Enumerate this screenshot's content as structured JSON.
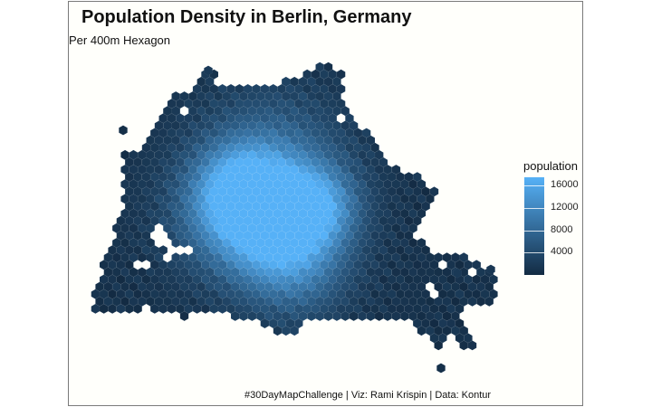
{
  "title": "Population Density in Berlin, Germany",
  "subtitle": "Per 400m Hexagon",
  "caption": "#30DayMapChallenge | Viz:  Rami Krispin | Data:  Kontur",
  "map": {
    "type": "hexbin choropleth",
    "region": "Berlin",
    "color_low": "#132b43",
    "color_high": "#56b1f7"
  },
  "legend": {
    "title": "population",
    "min": 0,
    "max": 17500,
    "ticks": [
      {
        "value": 16000,
        "label": "16000"
      },
      {
        "value": 12000,
        "label": "12000"
      },
      {
        "value": 8000,
        "label": "8000"
      },
      {
        "value": 4000,
        "label": "4000"
      }
    ]
  }
}
